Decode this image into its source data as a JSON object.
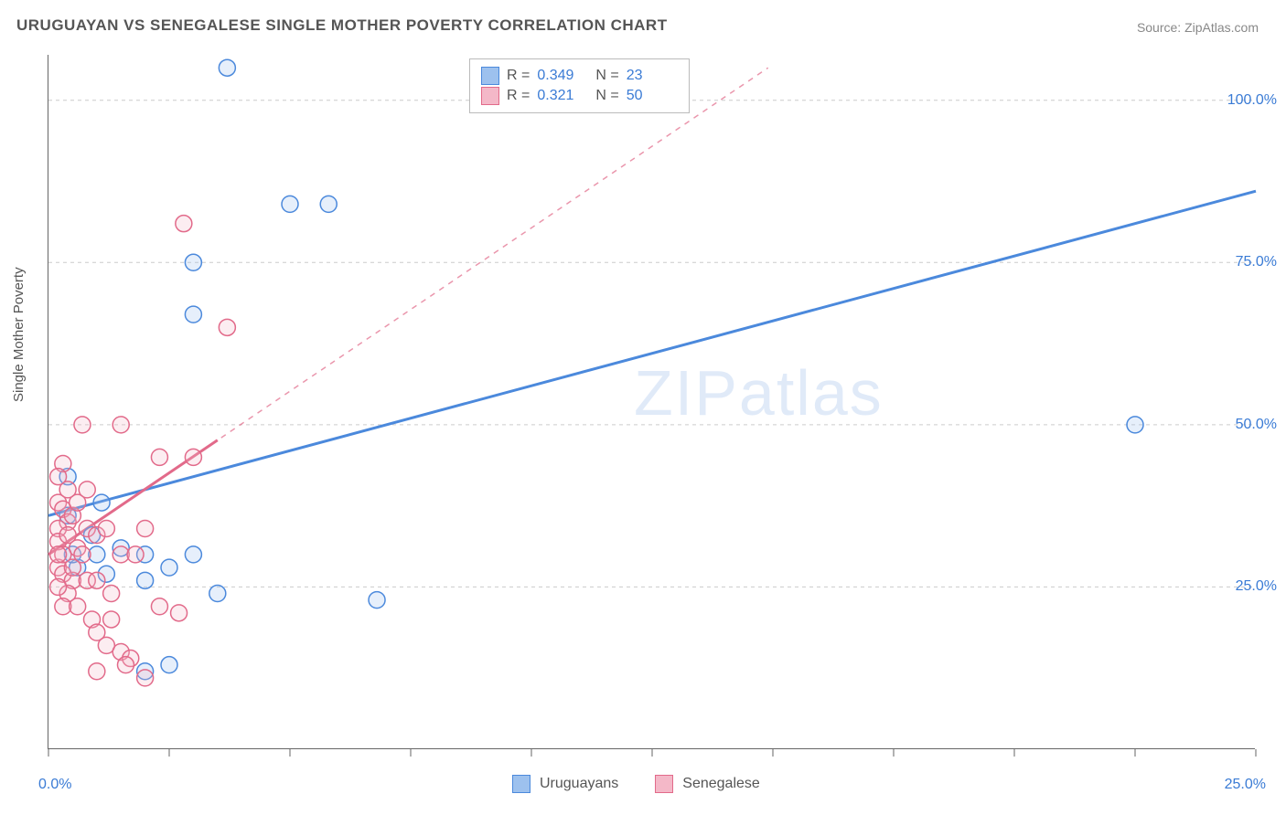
{
  "title": "URUGUAYAN VS SENEGALESE SINGLE MOTHER POVERTY CORRELATION CHART",
  "source": "Source: ZipAtlas.com",
  "y_axis_label": "Single Mother Poverty",
  "watermark": "ZIPatlas",
  "chart": {
    "type": "scatter",
    "background_color": "#ffffff",
    "grid_color": "#cccccc",
    "axis_color": "#666666",
    "tick_label_color": "#3a7bd5",
    "xlim": [
      0,
      25
    ],
    "ylim": [
      0,
      107
    ],
    "x_ticks": [
      0,
      2.5,
      5,
      7.5,
      10,
      12.5,
      15,
      17.5,
      20,
      22.5,
      25
    ],
    "x_tick_labels": {
      "0": "0.0%",
      "25": "25.0%"
    },
    "y_ticks": [
      25,
      50,
      75,
      100
    ],
    "y_tick_labels": {
      "25": "25.0%",
      "50": "50.0%",
      "75": "75.0%",
      "100": "100.0%"
    },
    "marker_radius": 9,
    "marker_stroke_width": 1.5,
    "marker_fill_opacity": 0.25,
    "trend_solid_width": 3,
    "trend_dash_width": 1.5
  },
  "series": [
    {
      "name": "Uruguayans",
      "color_stroke": "#4b89dc",
      "color_fill": "#9dc1ee",
      "R": "0.349",
      "N": "23",
      "trend": {
        "x0": 0,
        "y0": 36,
        "x1": 25,
        "y1": 86,
        "solid_to_x": 25
      },
      "points": [
        [
          3.7,
          105
        ],
        [
          5.0,
          84
        ],
        [
          5.8,
          84
        ],
        [
          3.0,
          75
        ],
        [
          3.0,
          67
        ],
        [
          0.4,
          36
        ],
        [
          0.9,
          33
        ],
        [
          1.0,
          30
        ],
        [
          1.5,
          31
        ],
        [
          2.0,
          30
        ],
        [
          2.5,
          28
        ],
        [
          3.0,
          30
        ],
        [
          3.5,
          24
        ],
        [
          2.0,
          26
        ],
        [
          2.5,
          13
        ],
        [
          2.0,
          12
        ],
        [
          6.8,
          23
        ],
        [
          0.6,
          28
        ],
        [
          1.1,
          38
        ],
        [
          22.5,
          50
        ],
        [
          0.5,
          30
        ],
        [
          0.4,
          42
        ],
        [
          1.2,
          27
        ]
      ]
    },
    {
      "name": "Senegalese",
      "color_stroke": "#e26a8a",
      "color_fill": "#f4b8c8",
      "R": "0.321",
      "N": "50",
      "trend": {
        "x0": 0,
        "y0": 30,
        "x1": 14.9,
        "y1": 105,
        "solid_to_x": 3.5
      },
      "points": [
        [
          2.8,
          81
        ],
        [
          3.7,
          65
        ],
        [
          0.7,
          50
        ],
        [
          1.5,
          50
        ],
        [
          0.3,
          44
        ],
        [
          0.2,
          42
        ],
        [
          2.3,
          45
        ],
        [
          3.0,
          45
        ],
        [
          0.2,
          38
        ],
        [
          0.3,
          37
        ],
        [
          0.4,
          35
        ],
        [
          0.2,
          34
        ],
        [
          0.5,
          36
        ],
        [
          0.2,
          32
        ],
        [
          0.6,
          31
        ],
        [
          0.8,
          34
        ],
        [
          1.0,
          33
        ],
        [
          1.5,
          30
        ],
        [
          1.2,
          34
        ],
        [
          1.8,
          30
        ],
        [
          2.0,
          34
        ],
        [
          0.2,
          28
        ],
        [
          0.3,
          27
        ],
        [
          0.5,
          26
        ],
        [
          0.7,
          30
        ],
        [
          0.4,
          24
        ],
        [
          0.8,
          26
        ],
        [
          0.2,
          25
        ],
        [
          1.0,
          26
        ],
        [
          1.3,
          24
        ],
        [
          0.3,
          22
        ],
        [
          0.6,
          22
        ],
        [
          0.9,
          20
        ],
        [
          1.3,
          20
        ],
        [
          2.3,
          22
        ],
        [
          2.7,
          21
        ],
        [
          1.0,
          18
        ],
        [
          1.2,
          16
        ],
        [
          1.5,
          15
        ],
        [
          1.7,
          14
        ],
        [
          1.6,
          13
        ],
        [
          1.0,
          12
        ],
        [
          2.0,
          11
        ],
        [
          0.3,
          30
        ],
        [
          0.4,
          33
        ],
        [
          0.6,
          38
        ],
        [
          0.4,
          40
        ],
        [
          0.8,
          40
        ],
        [
          0.2,
          30
        ],
        [
          0.5,
          28
        ]
      ]
    }
  ],
  "legend_top": {
    "label_R": "R =",
    "label_N": "N ="
  },
  "legend_bottom": {
    "items": [
      "Uruguayans",
      "Senegalese"
    ]
  }
}
